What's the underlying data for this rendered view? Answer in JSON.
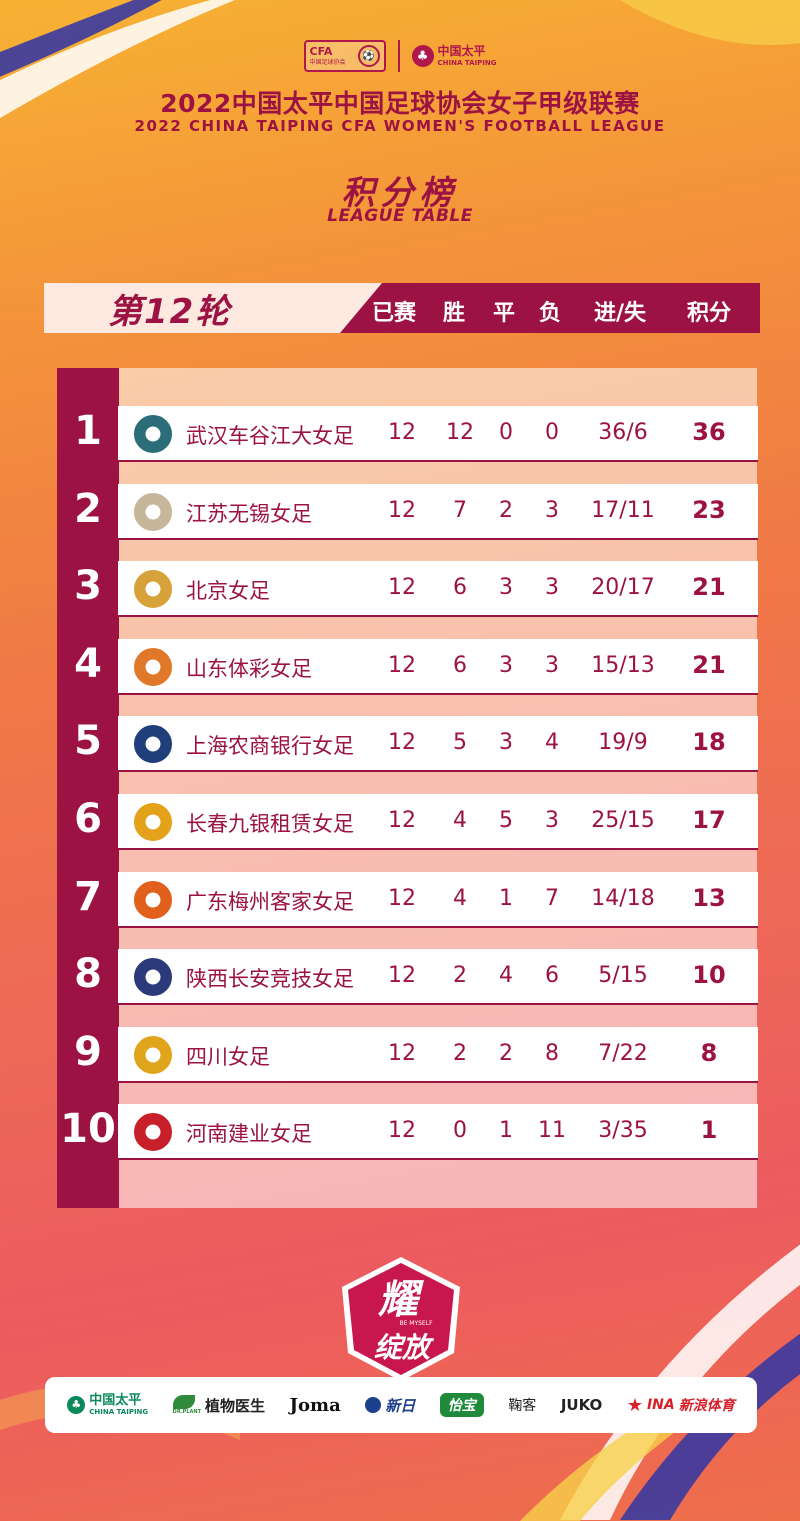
{
  "header": {
    "cfa_logo_text": "CFA",
    "cfa_logo_sub": "中国足球协会",
    "sponsor_cn": "中国太平",
    "sponsor_en": "CHINA TAIPING",
    "title_cn": "2022中国太平中国足球协会女子甲级联赛",
    "title_en": "2022 CHINA TAIPING CFA WOMEN'S FOOTBALL LEAGUE",
    "table_title_cn": "积分榜",
    "table_title_en": "LEAGUE TABLE"
  },
  "round_label": "第12轮",
  "columns": [
    "已赛",
    "胜",
    "平",
    "负",
    "进/失",
    "积分"
  ],
  "rows": [
    {
      "rank": "1",
      "team": "武汉车谷江大女足",
      "played": "12",
      "won": "12",
      "drawn": "0",
      "lost": "0",
      "goals": "36/6",
      "points": "36",
      "logo_color": "#2b6e7a"
    },
    {
      "rank": "2",
      "team": "江苏无锡女足",
      "played": "12",
      "won": "7",
      "drawn": "2",
      "lost": "3",
      "goals": "17/11",
      "points": "23",
      "logo_color": "#c7b79a"
    },
    {
      "rank": "3",
      "team": "北京女足",
      "played": "12",
      "won": "6",
      "drawn": "3",
      "lost": "3",
      "goals": "20/17",
      "points": "21",
      "logo_color": "#d8a23a"
    },
    {
      "rank": "4",
      "team": "山东体彩女足",
      "played": "12",
      "won": "6",
      "drawn": "3",
      "lost": "3",
      "goals": "15/13",
      "points": "21",
      "logo_color": "#e0782a"
    },
    {
      "rank": "5",
      "team": "上海农商银行女足",
      "played": "12",
      "won": "5",
      "drawn": "3",
      "lost": "4",
      "goals": "19/9",
      "points": "18",
      "logo_color": "#1f3f7a"
    },
    {
      "rank": "6",
      "team": "长春九银租赁女足",
      "played": "12",
      "won": "4",
      "drawn": "5",
      "lost": "3",
      "goals": "25/15",
      "points": "17",
      "logo_color": "#e3a21a"
    },
    {
      "rank": "7",
      "team": "广东梅州客家女足",
      "played": "12",
      "won": "4",
      "drawn": "1",
      "lost": "7",
      "goals": "14/18",
      "points": "13",
      "logo_color": "#e0601c"
    },
    {
      "rank": "8",
      "team": "陕西长安竞技女足",
      "played": "12",
      "won": "2",
      "drawn": "4",
      "lost": "6",
      "goals": "5/15",
      "points": "10",
      "logo_color": "#2b3a7a"
    },
    {
      "rank": "9",
      "team": "四川女足",
      "played": "12",
      "won": "2",
      "drawn": "2",
      "lost": "8",
      "goals": "7/22",
      "points": "8",
      "logo_color": "#e0a51c"
    },
    {
      "rank": "10",
      "team": "河南建业女足",
      "played": "12",
      "won": "0",
      "drawn": "1",
      "lost": "11",
      "goals": "3/35",
      "points": "1",
      "logo_color": "#c8202a"
    }
  ],
  "emblem": {
    "text_top": "耀",
    "text_bottom": "绽放",
    "tagline": "BE MYSELF"
  },
  "sponsors": {
    "taiping_cn": "中国太平",
    "taiping_en": "CHINA TAIPING",
    "zhiwu": "植物医生",
    "zhiwu_sub": "DR.PLANT",
    "joma": "Joma",
    "xinri": "新日",
    "yibao": "怡宝",
    "anke": "鞠客",
    "juko": "JUKO",
    "sina": "新浪体育",
    "sina_prefix": "INA"
  },
  "colors": {
    "accent": "#9c1243",
    "pink": "#fde9e0"
  }
}
